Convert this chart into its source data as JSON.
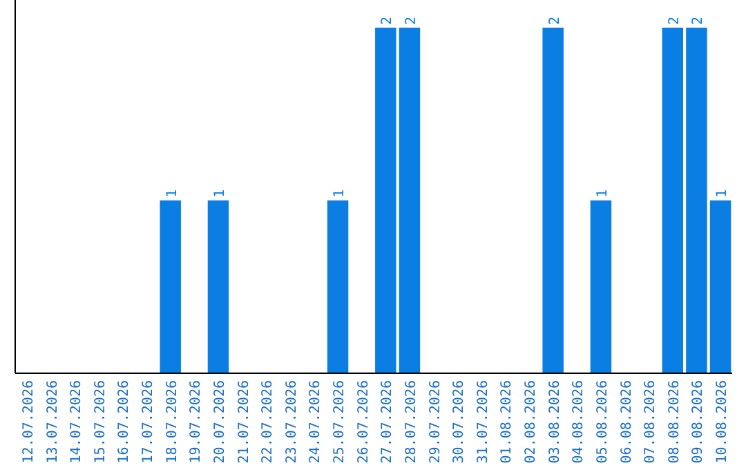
{
  "chart_data": {
    "type": "bar",
    "categories": [
      "12.07.2026",
      "13.07.2026",
      "14.07.2026",
      "15.07.2026",
      "16.07.2026",
      "17.07.2026",
      "18.07.2026",
      "19.07.2026",
      "20.07.2026",
      "21.07.2026",
      "22.07.2026",
      "23.07.2026",
      "24.07.2026",
      "25.07.2026",
      "26.07.2026",
      "27.07.2026",
      "28.07.2026",
      "29.07.2026",
      "30.07.2026",
      "31.07.2026",
      "01.08.2026",
      "02.08.2026",
      "03.08.2026",
      "04.08.2026",
      "05.08.2026",
      "06.08.2026",
      "07.08.2026",
      "08.08.2026",
      "09.08.2026",
      "10.08.2026"
    ],
    "values": [
      0,
      0,
      0,
      0,
      0,
      0,
      1,
      0,
      1,
      0,
      0,
      0,
      0,
      1,
      0,
      2,
      2,
      0,
      0,
      0,
      0,
      0,
      2,
      0,
      1,
      0,
      0,
      2,
      2,
      1
    ],
    "value_labels": [
      null,
      null,
      null,
      null,
      null,
      null,
      "1",
      null,
      "1",
      null,
      null,
      null,
      null,
      "1",
      null,
      "2",
      "2",
      null,
      null,
      null,
      null,
      null,
      "2",
      null,
      "1",
      null,
      null,
      "2",
      "2",
      "1"
    ],
    "color": "#0a7ee3",
    "tick_labels": "x"
  }
}
